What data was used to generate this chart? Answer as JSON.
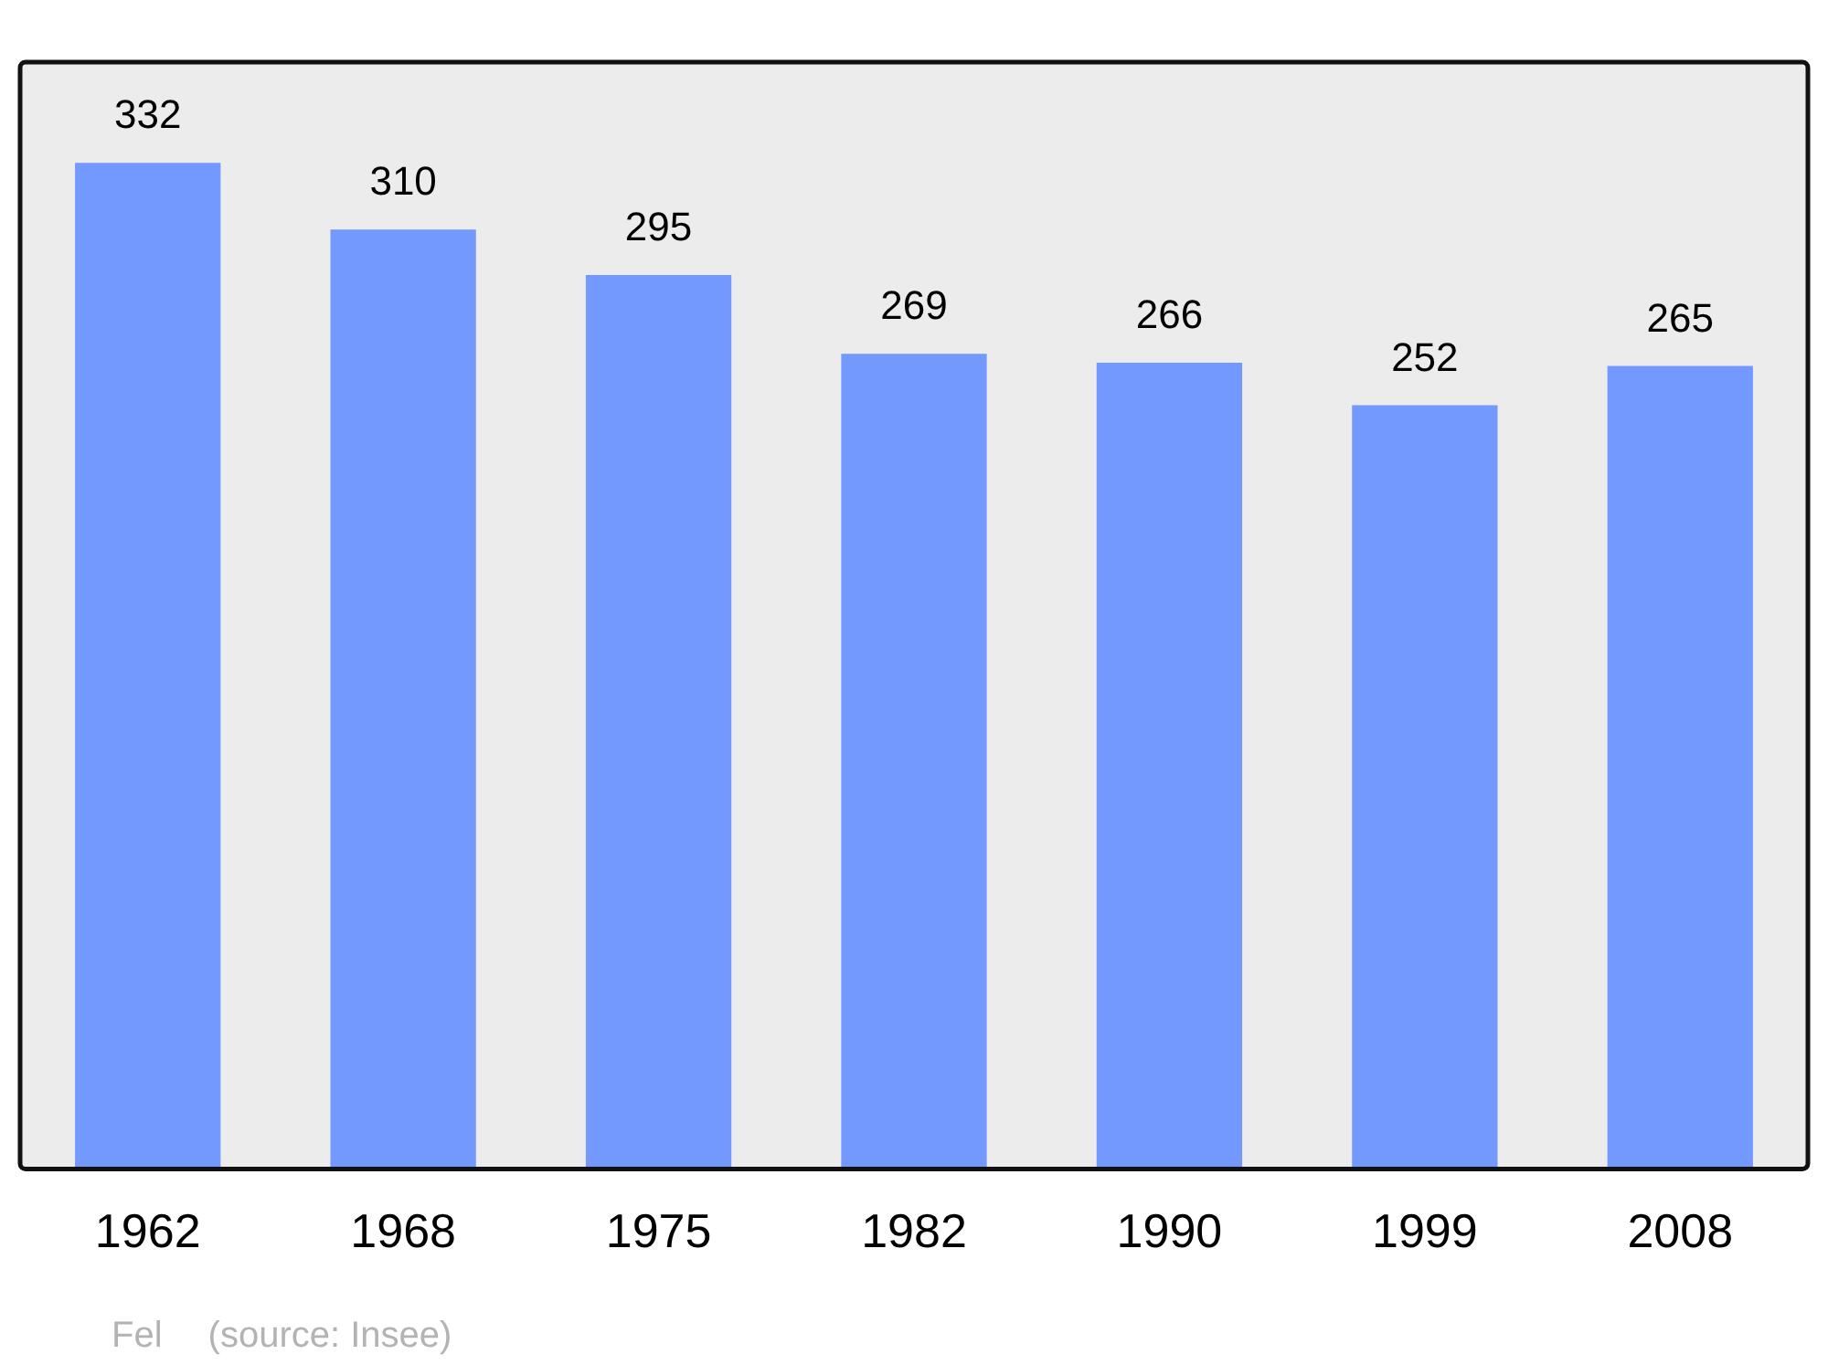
{
  "chart_data": {
    "type": "bar",
    "categories": [
      "1962",
      "1968",
      "1975",
      "1982",
      "1990",
      "1999",
      "2008"
    ],
    "values": [
      332,
      310,
      295,
      269,
      266,
      252,
      265
    ],
    "color": "#7399ff",
    "data_labels": true,
    "grid": false,
    "legend": false,
    "annotations": [
      "Fel",
      "(source: Insee)"
    ]
  }
}
